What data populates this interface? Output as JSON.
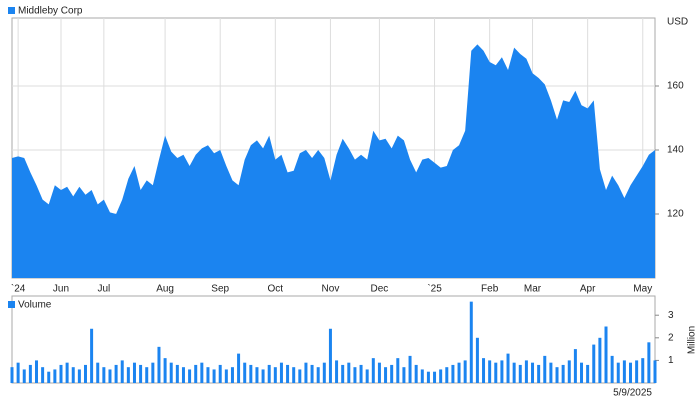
{
  "chart_data": [
    {
      "type": "area",
      "y_label": "USD",
      "grid": true,
      "categories": [
        null,
        "`24",
        null,
        null,
        null,
        null,
        null,
        null,
        "Jun",
        null,
        null,
        null,
        null,
        null,
        null,
        "Jul",
        null,
        null,
        null,
        null,
        null,
        null,
        null,
        null,
        null,
        "Aug",
        null,
        null,
        null,
        null,
        null,
        null,
        null,
        null,
        "Sep",
        null,
        null,
        null,
        null,
        null,
        null,
        null,
        null,
        "Oct",
        null,
        null,
        null,
        null,
        null,
        null,
        null,
        null,
        "Nov",
        null,
        null,
        null,
        null,
        null,
        null,
        null,
        "Dec",
        null,
        null,
        null,
        null,
        null,
        null,
        null,
        null,
        "`25",
        null,
        null,
        null,
        null,
        null,
        null,
        null,
        null,
        "Feb",
        null,
        null,
        null,
        null,
        null,
        null,
        "Mar",
        null,
        null,
        null,
        null,
        null,
        null,
        null,
        null,
        "Apr",
        null,
        null,
        null,
        null,
        null,
        null,
        null,
        null,
        "May",
        null,
        null
      ],
      "series": [
        {
          "name": "Middleby Corp",
          "color": "#1b84f0",
          "values": [
            137.5,
            138,
            137.5,
            133,
            129,
            124.5,
            123,
            129,
            127.5,
            128.5,
            125.5,
            128.5,
            126,
            127.5,
            123,
            124.5,
            120.5,
            120,
            124.5,
            131,
            135,
            127.5,
            130.5,
            129,
            137,
            144.5,
            139.5,
            137.5,
            138.5,
            135,
            138.5,
            140.5,
            141.5,
            139,
            140,
            135,
            130.5,
            129,
            137,
            141.5,
            143,
            140.5,
            144.5,
            137,
            138.5,
            133,
            133.5,
            139,
            140,
            137.5,
            140,
            137.5,
            130.5,
            138.5,
            143.5,
            140.5,
            137,
            138.5,
            137,
            146,
            143,
            143.5,
            140.5,
            144.5,
            143,
            137,
            133,
            137,
            137.5,
            136,
            134.5,
            135,
            140,
            141.5,
            146,
            171,
            173,
            171,
            167.5,
            166.5,
            169,
            165,
            172,
            170,
            168.5,
            164,
            162.5,
            160.5,
            155.5,
            149.5,
            155.5,
            155,
            158.5,
            154,
            153,
            155.5,
            134,
            127.5,
            132,
            129,
            125,
            129,
            132,
            135,
            138.5,
            140
          ]
        }
      ],
      "ylim": [
        100,
        181.25
      ],
      "yticks": [
        120,
        140,
        160
      ]
    },
    {
      "type": "bar",
      "y_label": "Million",
      "annotation": "5/9/2025",
      "series": [
        {
          "name": "Volume",
          "color": "#1b84f0",
          "values": [
            0.7,
            0.9,
            0.6,
            0.8,
            1.0,
            0.7,
            0.5,
            0.6,
            0.8,
            0.9,
            0.7,
            0.6,
            0.8,
            2.4,
            0.9,
            0.7,
            0.6,
            0.8,
            1.0,
            0.7,
            0.9,
            0.8,
            0.7,
            0.9,
            1.6,
            1.1,
            0.9,
            0.8,
            0.7,
            0.6,
            0.8,
            0.9,
            0.7,
            0.6,
            0.8,
            0.6,
            0.7,
            1.3,
            0.9,
            0.8,
            0.7,
            0.6,
            0.8,
            0.7,
            0.9,
            0.8,
            0.7,
            0.6,
            0.9,
            0.8,
            0.7,
            0.9,
            2.4,
            1.0,
            0.8,
            0.9,
            0.7,
            0.8,
            0.6,
            1.1,
            0.9,
            0.7,
            0.8,
            1.1,
            0.7,
            1.2,
            0.8,
            0.6,
            0.5,
            0.5,
            0.6,
            0.7,
            0.8,
            0.9,
            1.0,
            3.6,
            2.0,
            1.1,
            1.0,
            0.9,
            1.0,
            1.3,
            0.9,
            0.8,
            1.0,
            0.9,
            0.8,
            1.2,
            0.9,
            0.7,
            0.8,
            1.0,
            1.5,
            0.9,
            0.8,
            1.7,
            2.0,
            2.5,
            1.2,
            0.9,
            1.0,
            0.9,
            1.0,
            1.1,
            1.8,
            1.0
          ]
        }
      ],
      "ylim": [
        0,
        3.85
      ],
      "yticks": [
        1,
        2,
        3
      ]
    }
  ]
}
